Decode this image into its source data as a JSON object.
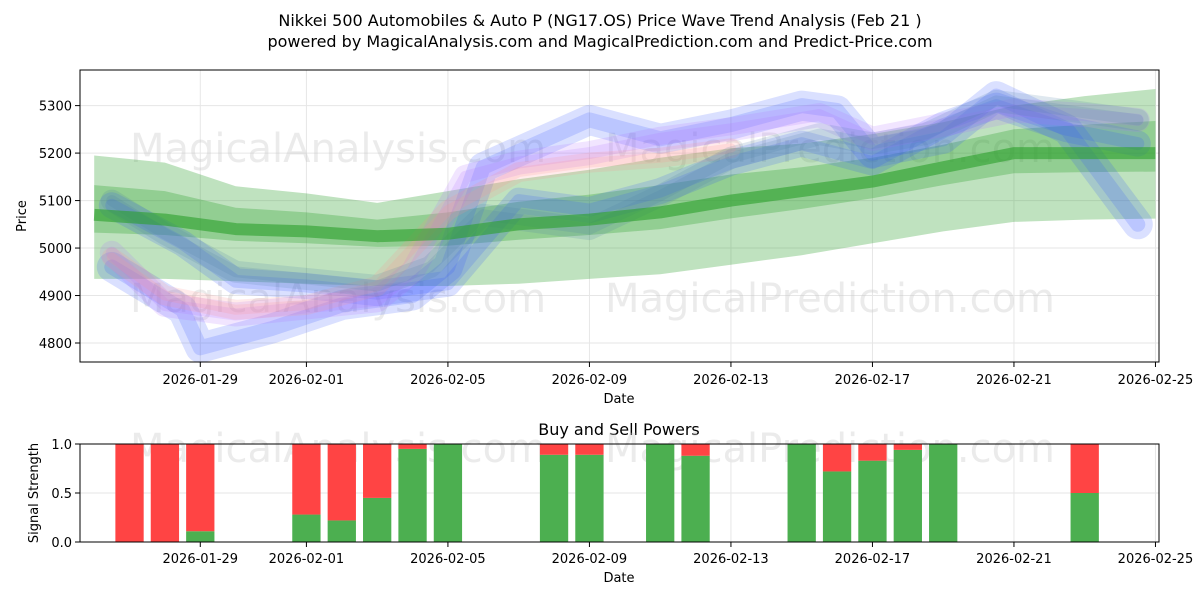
{
  "chart_data": [
    {
      "type": "line",
      "title_line1": "Nikkei 500 Automobiles & Auto P (NG17.OS) Price Wave Trend Analysis (Feb 21 )",
      "title_line2": "powered by MagicalAnalysis.com and MagicalPrediction.com and Predict-Price.com",
      "xlabel": "Date",
      "ylabel": "Price",
      "ylim": [
        4760,
        5375
      ],
      "xlim_days": [
        -3.4,
        27.1
      ],
      "x_ticks": [
        {
          "day": 0,
          "label": "2026-01-29"
        },
        {
          "day": 3,
          "label": "2026-02-01"
        },
        {
          "day": 7,
          "label": "2026-02-05"
        },
        {
          "day": 11,
          "label": "2026-02-09"
        },
        {
          "day": 15,
          "label": "2026-02-13"
        },
        {
          "day": 19,
          "label": "2026-02-17"
        },
        {
          "day": 23,
          "label": "2026-02-21"
        },
        {
          "day": 27,
          "label": "2026-02-25"
        }
      ],
      "y_ticks": [
        4800,
        4900,
        5000,
        5100,
        5200,
        5300
      ],
      "watermarks": [
        "MagicalAnalysis.com",
        "MagicalPrediction.com",
        "MagicalAnalysis.com",
        "MagicalPrediction.com"
      ],
      "series": [
        {
          "name": "green-trend",
          "color": "#2ca02c",
          "x": [
            -3,
            -1,
            1,
            3,
            5,
            7,
            9,
            11,
            13,
            15,
            17,
            19,
            21,
            23,
            25,
            27
          ],
          "y": [
            5070,
            5060,
            5040,
            5035,
            5025,
            5030,
            5050,
            5060,
            5075,
            5100,
            5120,
            5140,
            5170,
            5200,
            5200,
            5200
          ],
          "band_upper": [
            5195,
            5180,
            5130,
            5115,
            5095,
            5120,
            5145,
            5165,
            5190,
            5210,
            5220,
            5240,
            5265,
            5300,
            5320,
            5335
          ],
          "band_lower": [
            4935,
            4935,
            4930,
            4925,
            4920,
            4920,
            4925,
            4935,
            4945,
            4965,
            4985,
            5010,
            5035,
            5055,
            5060,
            5062
          ]
        },
        {
          "name": "blue-wave-a",
          "color": "#3355ff",
          "x": [
            -2.5,
            -0.5,
            1,
            3,
            5,
            7,
            9,
            11,
            13,
            15,
            17,
            19,
            21,
            22.5,
            24.5,
            26.5
          ],
          "y": [
            5090,
            5010,
            4930,
            4920,
            4905,
            4925,
            5100,
            5080,
            5120,
            5180,
            5220,
            5180,
            5260,
            5300,
            5250,
            5220
          ]
        },
        {
          "name": "blue-wave-b",
          "color": "#3355ff",
          "x": [
            -2.5,
            -0.5,
            0,
            2,
            4,
            6,
            7,
            8,
            11,
            13,
            15,
            17,
            18,
            19,
            21,
            22.5,
            24.5,
            26.5
          ],
          "y": [
            4960,
            4870,
            4790,
            4830,
            4880,
            4900,
            4960,
            5170,
            5270,
            5230,
            5260,
            5300,
            5290,
            5200,
            5230,
            5320,
            5250,
            5050
          ]
        },
        {
          "name": "purple-wave",
          "color": "#b070ff",
          "x": [
            -2.5,
            -1,
            1,
            3,
            5,
            6,
            7.5,
            9,
            11,
            13,
            15,
            17.5,
            19,
            21,
            23,
            25,
            26.5
          ],
          "y": [
            4990,
            4880,
            4860,
            4875,
            4890,
            4950,
            5150,
            5180,
            5200,
            5230,
            5250,
            5280,
            5230,
            5260,
            5290,
            5280,
            5270
          ]
        },
        {
          "name": "pink-wave",
          "color": "#ff9090",
          "x": [
            -2.5,
            -1,
            1,
            3,
            5,
            7,
            9,
            11,
            13,
            15
          ],
          "y": [
            4980,
            4900,
            4870,
            4880,
            4920,
            5080,
            5160,
            5180,
            5190,
            5210
          ]
        },
        {
          "name": "steel-wave",
          "color": "#4f7fa8",
          "x": [
            -2.5,
            -1,
            1,
            3,
            5,
            6.5,
            8,
            11,
            13,
            15,
            17.5,
            19,
            20.5,
            22.5,
            24.5,
            26.5
          ],
          "y": [
            5100,
            5030,
            4950,
            4935,
            4920,
            4960,
            5070,
            5040,
            5110,
            5190,
            5240,
            5220,
            5240,
            5310,
            5290,
            5270
          ]
        }
      ]
    },
    {
      "type": "bar",
      "title": "Buy and Sell Powers",
      "xlabel": "Date",
      "ylabel": "Signal Strength",
      "ylim": [
        0,
        1
      ],
      "y_ticks": [
        0.0,
        0.5,
        1.0
      ],
      "y_tick_labels": [
        "0.0",
        "0.5",
        "1.0"
      ],
      "xlim_days": [
        -3.4,
        27.1
      ],
      "x_ticks": [
        {
          "day": 0,
          "label": "2026-01-29"
        },
        {
          "day": 3,
          "label": "2026-02-01"
        },
        {
          "day": 7,
          "label": "2026-02-05"
        },
        {
          "day": 11,
          "label": "2026-02-09"
        },
        {
          "day": 15,
          "label": "2026-02-13"
        },
        {
          "day": 19,
          "label": "2026-02-17"
        },
        {
          "day": 23,
          "label": "2026-02-21"
        },
        {
          "day": 27,
          "label": "2026-02-25"
        }
      ],
      "buy_color": "#4caf50",
      "sell_color": "#ff4444",
      "bars": [
        {
          "day": -2,
          "buy": 0.0
        },
        {
          "day": -1,
          "buy": 0.0
        },
        {
          "day": 0,
          "buy": 0.11
        },
        {
          "day": 3,
          "buy": 0.28
        },
        {
          "day": 4,
          "buy": 0.22
        },
        {
          "day": 5,
          "buy": 0.45
        },
        {
          "day": 6,
          "buy": 0.95
        },
        {
          "day": 7,
          "buy": 1.0
        },
        {
          "day": 10,
          "buy": 0.89
        },
        {
          "day": 11,
          "buy": 0.89
        },
        {
          "day": 13,
          "buy": 1.0
        },
        {
          "day": 14,
          "buy": 0.88
        },
        {
          "day": 17,
          "buy": 1.0
        },
        {
          "day": 18,
          "buy": 0.72
        },
        {
          "day": 19,
          "buy": 0.83
        },
        {
          "day": 20,
          "buy": 0.94
        },
        {
          "day": 21,
          "buy": 1.0
        },
        {
          "day": 25,
          "buy": 0.5
        }
      ]
    }
  ]
}
